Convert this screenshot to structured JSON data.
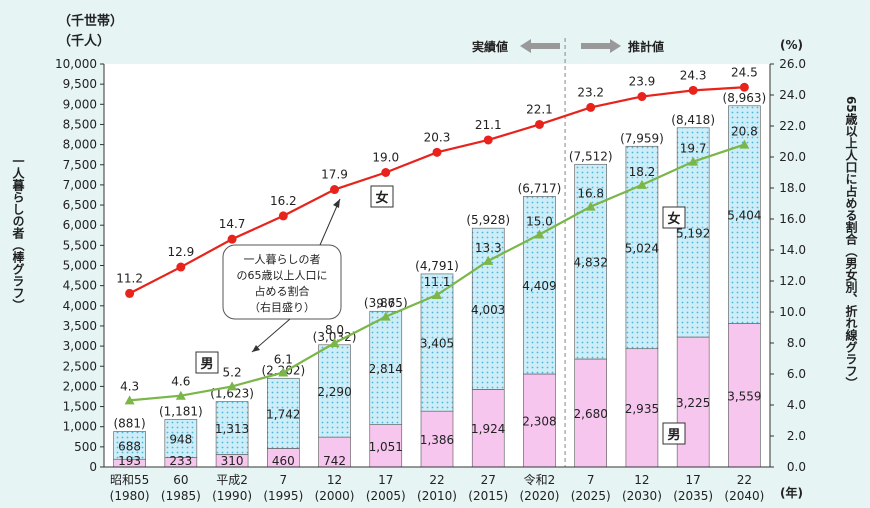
{
  "chart_data": {
    "type": "bar+line",
    "left_axis_unit_line1": "（千世帯）",
    "left_axis_unit_line2": "（千人）",
    "right_axis_unit": "(%)",
    "left_axis_label": "一人暮らしの者（棒グラフ）",
    "right_axis_label": "65歳以上人口に占める割合（男女別、折れ線グラフ）",
    "x_unit": "(年)",
    "ylim_left": [
      0,
      10000
    ],
    "ylim_right": [
      0,
      26
    ],
    "left_ticks": [
      "0",
      "500",
      "1,000",
      "1,500",
      "2,000",
      "2,500",
      "3,000",
      "3,500",
      "4,000",
      "4,500",
      "5,000",
      "5,500",
      "6,000",
      "6,500",
      "7,000",
      "7,500",
      "8,000",
      "8,500",
      "9,000",
      "9,500",
      "10,000"
    ],
    "right_ticks": [
      "0.0",
      "2.0",
      "4.0",
      "6.0",
      "8.0",
      "10.0",
      "12.0",
      "14.0",
      "16.0",
      "18.0",
      "20.0",
      "22.0",
      "24.0",
      "26.0"
    ],
    "categories": [
      {
        "era": "昭和55",
        "year": "(1980)"
      },
      {
        "era": "60",
        "year": "(1985)"
      },
      {
        "era": "平成2",
        "year": "(1990)"
      },
      {
        "era": "7",
        "year": "(1995)"
      },
      {
        "era": "12",
        "year": "(2000)"
      },
      {
        "era": "17",
        "year": "(2005)"
      },
      {
        "era": "22",
        "year": "(2010)"
      },
      {
        "era": "27",
        "year": "(2015)"
      },
      {
        "era": "令和2",
        "year": "(2020)"
      },
      {
        "era": "7",
        "year": "(2025)"
      },
      {
        "era": "12",
        "year": "(2030)"
      },
      {
        "era": "17",
        "year": "(2035)"
      },
      {
        "era": "22",
        "year": "(2040)"
      }
    ],
    "male_bar": [
      193,
      233,
      310,
      460,
      742,
      1051,
      1386,
      1924,
      2308,
      2680,
      2935,
      3225,
      3559
    ],
    "female_bar": [
      688,
      948,
      1313,
      1742,
      2290,
      2814,
      3405,
      4003,
      4409,
      4832,
      5024,
      5192,
      5404
    ],
    "male_bar_labels": [
      "193",
      "233",
      "310",
      "460",
      "742",
      "1,051",
      "1,386",
      "1,924",
      "2,308",
      "2,680",
      "2,935",
      "3,225",
      "3,559"
    ],
    "female_bar_labels": [
      "688",
      "948",
      "1,313",
      "1,742",
      "2,290",
      "2,814",
      "3,405",
      "4,003",
      "4,409",
      "4,832",
      "5,024",
      "5,192",
      "5,404"
    ],
    "total_labels": [
      "(881)",
      "(1,181)",
      "(1,623)",
      "(2,202)",
      "(3,032)",
      "(3,865)",
      "(4,791)",
      "(5,928)",
      "(6,717)",
      "(7,512)",
      "(7,959)",
      "(8,418)",
      "(8,963)"
    ],
    "female_ratio": [
      11.2,
      12.9,
      14.7,
      16.2,
      17.9,
      19.0,
      20.3,
      21.1,
      22.1,
      23.2,
      23.9,
      24.3,
      24.5
    ],
    "male_ratio": [
      4.3,
      4.6,
      5.2,
      6.1,
      8.0,
      9.7,
      11.1,
      13.3,
      15.0,
      16.8,
      18.2,
      19.7,
      20.8
    ],
    "female_ratio_labels": [
      "11.2",
      "12.9",
      "14.7",
      "16.2",
      "17.9",
      "19.0",
      "20.3",
      "21.1",
      "22.1",
      "23.2",
      "23.9",
      "24.3",
      "24.5"
    ],
    "male_ratio_labels": [
      "4.3",
      "4.6",
      "5.2",
      "6.1",
      "8.0",
      "9.7",
      "11.1",
      "13.3",
      "15.0",
      "16.8",
      "18.2",
      "19.7",
      "20.8"
    ],
    "female_line_label": "女",
    "male_line_label": "男",
    "female_bar_label": "女",
    "male_bar_label": "男",
    "actual_label": "実績値",
    "forecast_label": "推計値",
    "callout_lines": [
      "一人暮らしの者",
      "の65歳以上人口に",
      "占める割合",
      "（右目盛り）"
    ],
    "colors": {
      "background": "#e6f4f4",
      "male_bar": "#f7c6ee",
      "female_bar": "#cdeef8",
      "female_dots": "#49b6dc",
      "female_line": "#e8231c",
      "male_line": "#7ab648",
      "arrow": "#999999"
    }
  }
}
